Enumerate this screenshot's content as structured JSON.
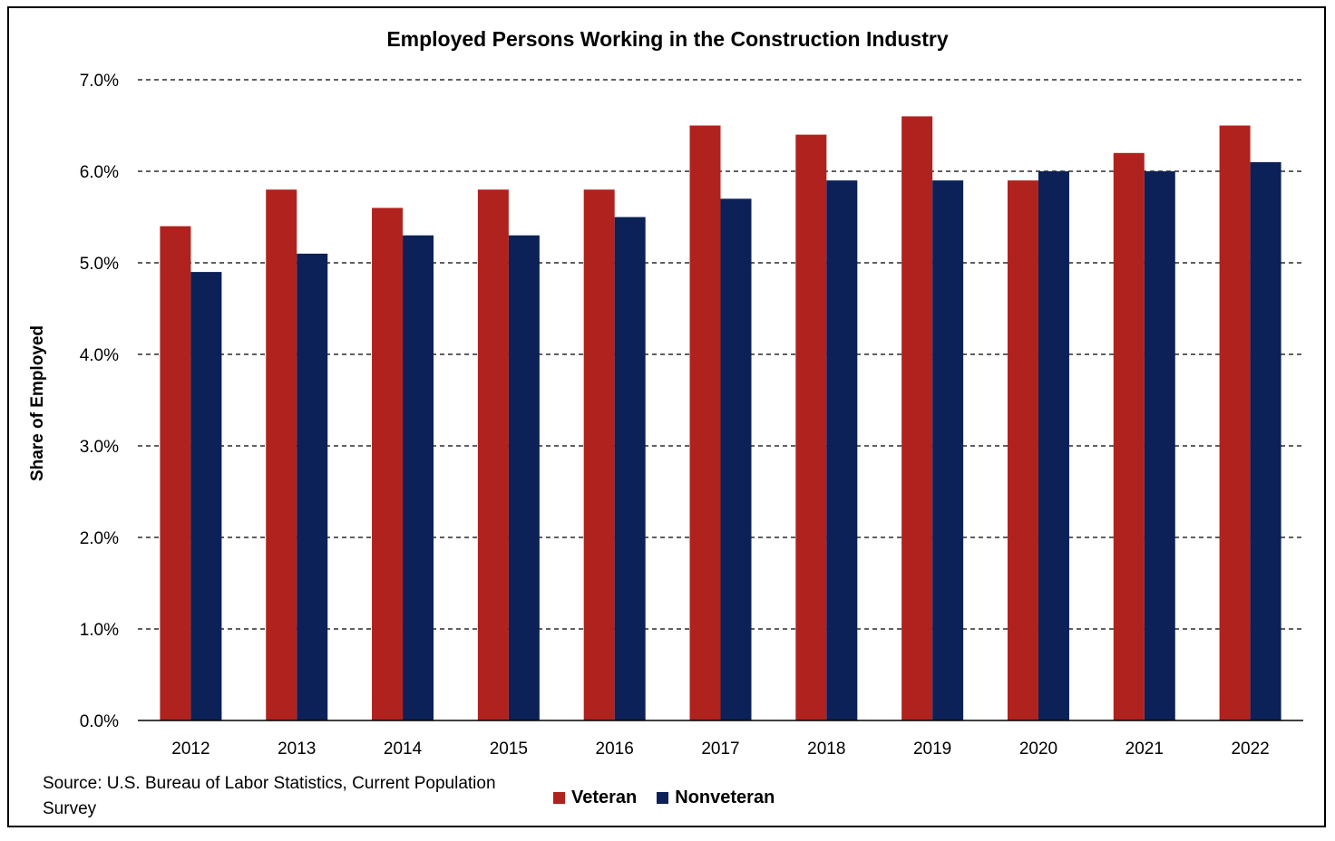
{
  "chart_data": {
    "type": "bar",
    "title": "Employed Persons Working in the Construction Industry",
    "ylabel": "Share of Employed",
    "xlabel": "",
    "categories": [
      "2012",
      "2013",
      "2014",
      "2015",
      "2016",
      "2017",
      "2018",
      "2019",
      "2020",
      "2021",
      "2022"
    ],
    "series": [
      {
        "name": "Veteran",
        "color": "#B0221E",
        "values": [
          5.4,
          5.8,
          5.6,
          5.8,
          5.8,
          6.5,
          6.4,
          6.6,
          5.9,
          6.2,
          6.5
        ]
      },
      {
        "name": "Nonveteran",
        "color": "#0B2157",
        "values": [
          4.9,
          5.1,
          5.3,
          5.3,
          5.5,
          5.7,
          5.9,
          5.9,
          6.0,
          6.0,
          6.1
        ]
      }
    ],
    "ylim": [
      0,
      7
    ],
    "yticks": [
      "0.0%",
      "1.0%",
      "2.0%",
      "3.0%",
      "4.0%",
      "5.0%",
      "6.0%",
      "7.0%"
    ],
    "grid": "dashed horizontal",
    "legend": "bottom-center"
  },
  "source": "Source: U.S. Bureau of Labor Statistics, Current Population Survey"
}
